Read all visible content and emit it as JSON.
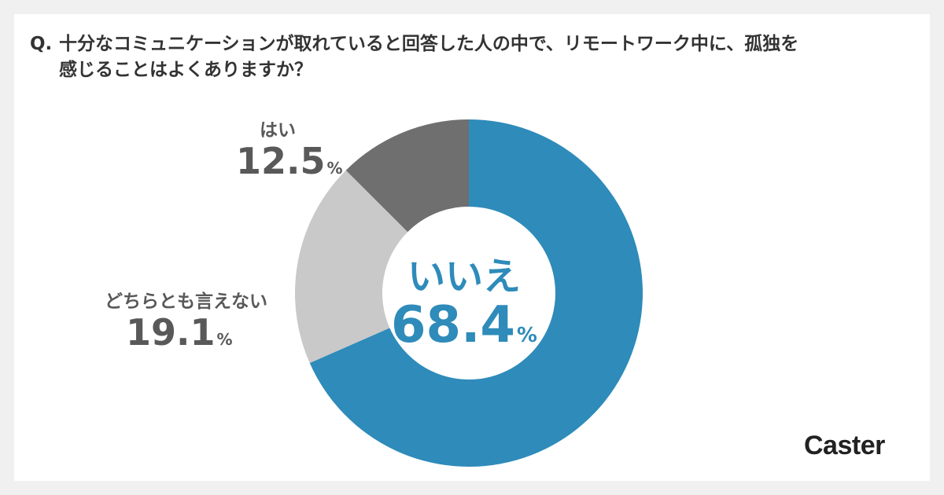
{
  "question": {
    "prefix": "Q.",
    "line1": "十分なコミュニケーションが取れていると回答した人の中で、リモートワーク中に、孤独を",
    "line2": "感じることはよくありますか？"
  },
  "chart_data": {
    "type": "pie",
    "donut": true,
    "categories": [
      "いいえ",
      "どちらとも言えない",
      "はい"
    ],
    "values": [
      68.4,
      19.1,
      12.5
    ],
    "unit": "%",
    "colors": [
      "#2e8bba",
      "#c9c9c9",
      "#6f6f6f"
    ],
    "start": "12 o'clock",
    "direction": "clockwise"
  },
  "labels": {
    "no": {
      "name": "いいえ",
      "value": "68.4",
      "unit": "%"
    },
    "neutral": {
      "name": "どちらとも言えない",
      "value": "19.1",
      "unit": "%"
    },
    "yes": {
      "name": "はい",
      "value": "12.5",
      "unit": "%"
    }
  },
  "brand": {
    "logo_text": "Caster"
  },
  "colors": {
    "accent": "#2e8bba",
    "label_gray": "#595959",
    "background": "#f0f0f0"
  }
}
